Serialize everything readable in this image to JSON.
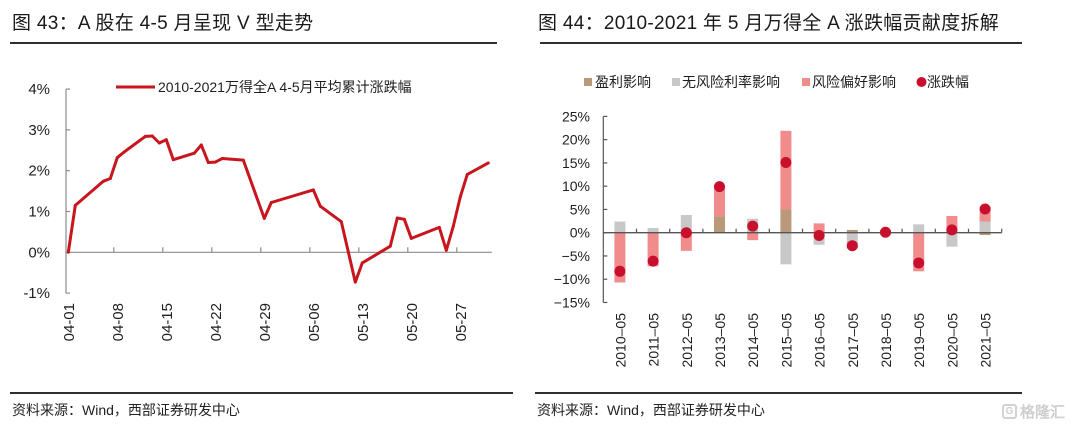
{
  "left_panel": {
    "title": "图 43：A 股在 4-5 月呈现 V 型走势",
    "source": "资料来源：Wind，西部证券研发中心"
  },
  "right_panel": {
    "title": "图 44：2010-2021 年 5 月万得全 A 涨跌幅贡献度拆解",
    "source": "资料来源：Wind，西部证券研发中心"
  },
  "watermark": {
    "icon": "g-logo-icon",
    "icon_glyph": "G",
    "text": "格隆汇"
  },
  "colors": {
    "line_red": "#c8161e",
    "earnings_brown": "#b9997a",
    "riskfree_gray": "#c8c8c8",
    "riskpref_pink": "#f08c8c",
    "return_dot_red": "#c8102e",
    "axis_gray": "#8c8c8c",
    "axis_dark": "#555555"
  },
  "chart_data": [
    {
      "type": "line",
      "title": "A 股在 4-5 月呈现 V 型走势",
      "xlabel": "",
      "ylabel": "",
      "grid": false,
      "legend": "top-center",
      "xlim": [
        "04-01",
        "05-31"
      ],
      "ylim": [
        -1,
        4
      ],
      "y_ticks": [
        4,
        3,
        2,
        1,
        0,
        -1
      ],
      "y_tick_labels": [
        "4%",
        "3%",
        "2%",
        "1%",
        "0%",
        "-1%"
      ],
      "x_ticks": [
        "04-01",
        "04-08",
        "04-15",
        "04-22",
        "04-29",
        "05-06",
        "05-13",
        "05-20",
        "05-27"
      ],
      "series": [
        {
          "name": "2010-2021万得全A 4-5月平均累计涨跌幅",
          "unit": "%",
          "points": [
            {
              "x": "04-01",
              "y": 0.0
            },
            {
              "x": "04-02",
              "y": 1.15
            },
            {
              "x": "04-06",
              "y": 1.74
            },
            {
              "x": "04-07",
              "y": 1.81
            },
            {
              "x": "04-08",
              "y": 2.32
            },
            {
              "x": "04-09",
              "y": 2.46
            },
            {
              "x": "04-12",
              "y": 2.84
            },
            {
              "x": "04-13",
              "y": 2.85
            },
            {
              "x": "04-14",
              "y": 2.68
            },
            {
              "x": "04-15",
              "y": 2.76
            },
            {
              "x": "04-16",
              "y": 2.27
            },
            {
              "x": "04-19",
              "y": 2.43
            },
            {
              "x": "04-20",
              "y": 2.63
            },
            {
              "x": "04-21",
              "y": 2.2
            },
            {
              "x": "04-22",
              "y": 2.21
            },
            {
              "x": "04-23",
              "y": 2.3
            },
            {
              "x": "04-26",
              "y": 2.26
            },
            {
              "x": "04-29",
              "y": 0.83
            },
            {
              "x": "04-30",
              "y": 1.22
            },
            {
              "x": "05-06",
              "y": 1.53
            },
            {
              "x": "05-07",
              "y": 1.13
            },
            {
              "x": "05-10",
              "y": 0.75
            },
            {
              "x": "05-12",
              "y": -0.73
            },
            {
              "x": "05-13",
              "y": -0.26
            },
            {
              "x": "05-17",
              "y": 0.15
            },
            {
              "x": "05-18",
              "y": 0.84
            },
            {
              "x": "05-19",
              "y": 0.81
            },
            {
              "x": "05-20",
              "y": 0.34
            },
            {
              "x": "05-24",
              "y": 0.61
            },
            {
              "x": "05-25",
              "y": 0.05
            },
            {
              "x": "05-26",
              "y": 0.64
            },
            {
              "x": "05-27",
              "y": 1.36
            },
            {
              "x": "05-28",
              "y": 1.91
            },
            {
              "x": "05-31",
              "y": 2.19
            }
          ]
        }
      ]
    },
    {
      "type": "bar",
      "stacked": true,
      "title": "2010-2021 年 5 月万得全 A 涨跌幅贡献度拆解",
      "xlabel": "",
      "ylabel": "",
      "grid": false,
      "legend": "top-center",
      "ylim": [
        -15,
        25
      ],
      "y_ticks": [
        25,
        20,
        15,
        10,
        5,
        0,
        -5,
        -10,
        -15
      ],
      "y_tick_labels": [
        "25%",
        "20%",
        "15%",
        "10%",
        "5%",
        "0%",
        "−5%",
        "−10%",
        "−15%"
      ],
      "categories": [
        "2010–05",
        "2011–05",
        "2012–05",
        "2013–05",
        "2014–05",
        "2015–05",
        "2016–05",
        "2017–05",
        "2018–05",
        "2019–05",
        "2020–05",
        "2021–05"
      ],
      "series": [
        {
          "name": "盈利影响",
          "kind": "bar",
          "unit": "%",
          "values": [
            0.0,
            0.0,
            0.0,
            3.5,
            0.0,
            5.0,
            0.0,
            0.6,
            0.4,
            0.0,
            0.5,
            -0.5
          ]
        },
        {
          "name": "无风险利率影响",
          "kind": "bar",
          "unit": "%",
          "values": [
            2.4,
            1.0,
            3.8,
            0.0,
            3.0,
            -6.8,
            -2.6,
            -2.0,
            -0.5,
            1.8,
            -3.0,
            2.4
          ]
        },
        {
          "name": "风险偏好影响",
          "kind": "bar",
          "unit": "%",
          "values": [
            -10.7,
            -7.2,
            -3.9,
            6.4,
            -1.6,
            16.9,
            2.0,
            -1.4,
            0.2,
            -8.3,
            3.1,
            3.2
          ]
        },
        {
          "name": "涨跌幅",
          "kind": "scatter",
          "unit": "%",
          "values": [
            -8.3,
            -6.1,
            0.0,
            9.9,
            1.4,
            15.1,
            -0.6,
            -2.8,
            0.1,
            -6.5,
            0.6,
            5.1
          ]
        }
      ]
    }
  ]
}
